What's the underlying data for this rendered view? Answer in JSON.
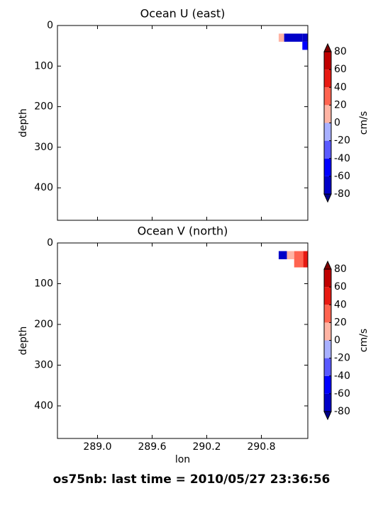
{
  "chart_data": [
    {
      "type": "heatmap",
      "title": "Ocean U (east)",
      "ylabel": "depth",
      "xlim": [
        288.56,
        291.31
      ],
      "ylim": [
        480,
        0
      ],
      "xticks": [
        {
          "value": 289,
          "label": "289.0"
        },
        289.6,
        290.2,
        290.8
      ],
      "show_xtick_labels": false,
      "yticks": [
        0,
        100,
        200,
        300,
        400
      ],
      "x": [
        290.99,
        291.05,
        291.25,
        291.31
      ],
      "y": [
        20,
        40,
        60
      ],
      "z": [
        [
          10,
          -70,
          -70
        ],
        [
          null,
          null,
          -50
        ]
      ],
      "colorbar": {
        "label": "cm/s",
        "levels": [
          -80,
          -60,
          -40,
          -20,
          0,
          20,
          40,
          60,
          80
        ],
        "colors": [
          "#0000c8",
          "#0000ff",
          "#5a5aff",
          "#a8b0ff",
          "#ffb4a4",
          "#ff6450",
          "#e81a12",
          "#c00000"
        ],
        "extend_colors": [
          "#00008a",
          "#800000"
        ]
      }
    },
    {
      "type": "heatmap",
      "title": "Ocean V (north)",
      "ylabel": "depth",
      "xlabel": "lon",
      "xlim": [
        288.56,
        291.31
      ],
      "ylim": [
        480,
        0
      ],
      "xticks": [
        {
          "value": 289,
          "label": "289.0"
        },
        289.6,
        290.2,
        290.8
      ],
      "show_xtick_labels": true,
      "yticks": [
        0,
        100,
        200,
        300,
        400
      ],
      "x": [
        290.99,
        291.08,
        291.16,
        291.26,
        291.31
      ],
      "y": [
        20,
        40,
        60
      ],
      "z": [
        [
          -70,
          10,
          30,
          50
        ],
        [
          null,
          null,
          20,
          40
        ]
      ],
      "colorbar": {
        "label": "cm/s",
        "levels": [
          -80,
          -60,
          -40,
          -20,
          0,
          20,
          40,
          60,
          80
        ],
        "colors": [
          "#0000c8",
          "#0000ff",
          "#5a5aff",
          "#a8b0ff",
          "#ffb4a4",
          "#ff6450",
          "#e81a12",
          "#c00000"
        ],
        "extend_colors": [
          "#00008a",
          "#800000"
        ]
      }
    }
  ],
  "footer": "os75nb: last time = 2010/05/27 23:36:56"
}
